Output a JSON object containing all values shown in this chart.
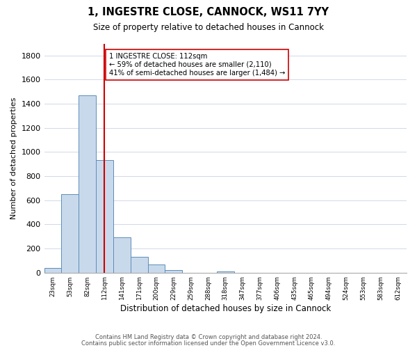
{
  "title": "1, INGESTRE CLOSE, CANNOCK, WS11 7YY",
  "subtitle": "Size of property relative to detached houses in Cannock",
  "xlabel": "Distribution of detached houses by size in Cannock",
  "ylabel": "Number of detached properties",
  "bar_color": "#c9d9ec",
  "bar_edge_color": "#5b8db8",
  "bin_labels": [
    "23sqm",
    "53sqm",
    "82sqm",
    "112sqm",
    "141sqm",
    "171sqm",
    "200sqm",
    "229sqm",
    "259sqm",
    "288sqm",
    "318sqm",
    "347sqm",
    "377sqm",
    "406sqm",
    "435sqm",
    "465sqm",
    "494sqm",
    "524sqm",
    "553sqm",
    "583sqm",
    "612sqm"
  ],
  "bar_values": [
    40,
    650,
    1470,
    935,
    295,
    130,
    65,
    22,
    0,
    0,
    10,
    0,
    0,
    0,
    0,
    0,
    0,
    0,
    0,
    0,
    0
  ],
  "vline_label_index": 3,
  "vline_color": "#cc0000",
  "annotation_text": "1 INGESTRE CLOSE: 112sqm\n← 59% of detached houses are smaller (2,110)\n41% of semi-detached houses are larger (1,484) →",
  "annotation_box_color": "white",
  "annotation_box_edge": "#cc0000",
  "ylim": [
    0,
    1900
  ],
  "yticks": [
    0,
    200,
    400,
    600,
    800,
    1000,
    1200,
    1400,
    1600,
    1800
  ],
  "footer_line1": "Contains HM Land Registry data © Crown copyright and database right 2024.",
  "footer_line2": "Contains public sector information licensed under the Open Government Licence v3.0.",
  "background_color": "#ffffff",
  "grid_color": "#d0d8e8"
}
